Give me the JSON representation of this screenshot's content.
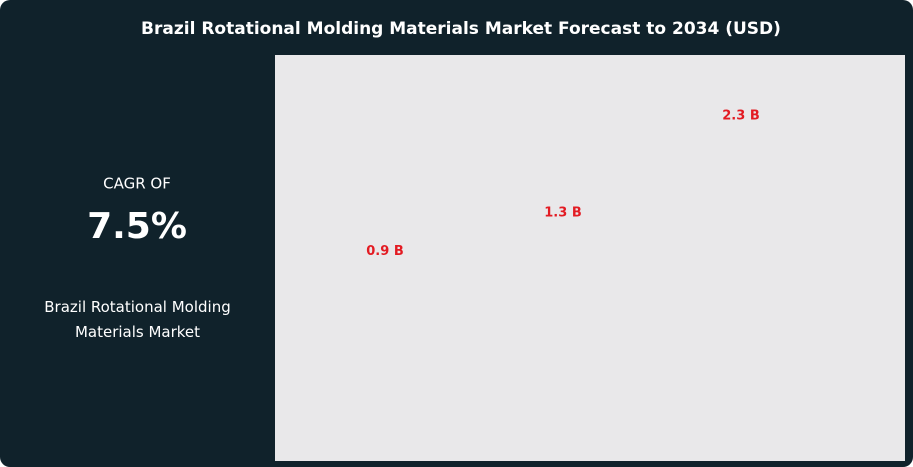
{
  "cagr_label": "CAGR OF",
  "cagr_value": "7.5%",
  "market_name": "Brazil Rotational Molding Materials Market",
  "chart_data": {
    "type": "bar",
    "title": "Brazil Rotational Molding Materials Market Forecast to 2034 (USD)",
    "categories": [
      null,
      null,
      null
    ],
    "values": [
      0.9,
      1.3,
      2.3
    ],
    "value_labels": [
      "0.9 B",
      "1.3 B",
      "2.3 B"
    ],
    "color": "#e31b23"
  }
}
